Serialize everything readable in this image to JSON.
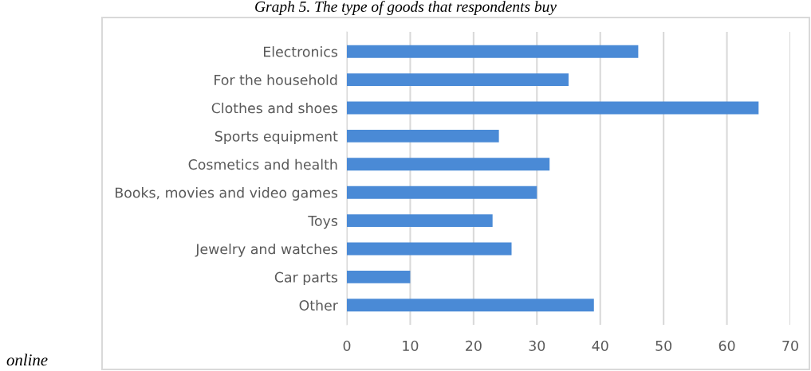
{
  "chart_data": {
    "type": "bar",
    "orientation": "horizontal",
    "title": "Graph 5. The type of goods that respondents buy",
    "annotations": [
      "online"
    ],
    "categories": [
      "Electronics",
      "For the household",
      "Clothes and shoes",
      "Sports equipment",
      "Cosmetics and health",
      "Books, movies and video games",
      "Toys",
      "Jewelry and watches",
      "Car parts",
      "Other"
    ],
    "values": [
      46,
      35,
      65,
      24,
      32,
      30,
      23,
      26,
      10,
      39
    ],
    "color": "#4a8ad6",
    "xlim": [
      0,
      70
    ],
    "xticks": [
      0,
      10,
      20,
      30,
      40,
      50,
      60,
      70
    ],
    "grid": "x"
  }
}
